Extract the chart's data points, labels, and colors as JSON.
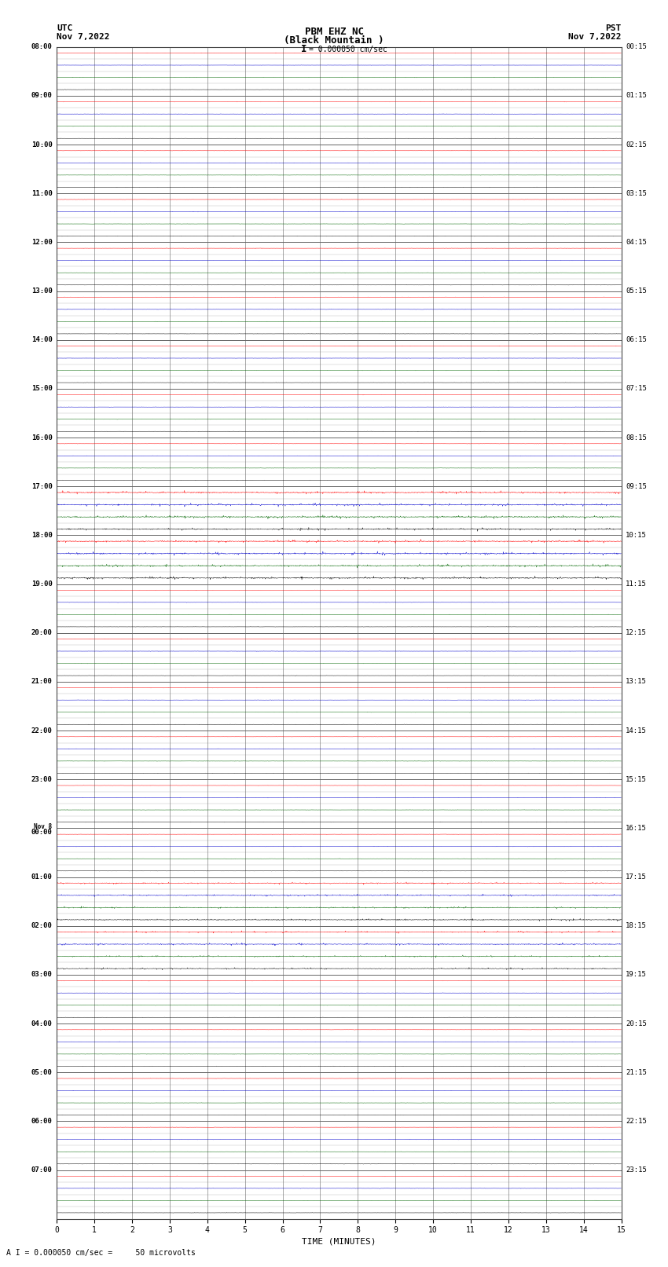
{
  "title_line1": "PBM EHZ NC",
  "title_line2": "(Black Mountain )",
  "scale_bar_text": "I = 0.000050 cm/sec",
  "left_header_line1": "UTC",
  "left_header_line2": "Nov 7,2022",
  "right_header_line1": "PST",
  "right_header_line2": "Nov 7,2022",
  "xlabel": "TIME (MINUTES)",
  "footer": "A I = 0.000050 cm/sec =     50 microvolts",
  "left_times": [
    "08:00",
    "",
    "",
    "",
    "09:00",
    "",
    "",
    "",
    "10:00",
    "",
    "",
    "",
    "11:00",
    "",
    "",
    "",
    "12:00",
    "",
    "",
    "",
    "13:00",
    "",
    "",
    "",
    "14:00",
    "",
    "",
    "",
    "15:00",
    "",
    "",
    "",
    "16:00",
    "",
    "",
    "",
    "17:00",
    "",
    "",
    "",
    "18:00",
    "",
    "",
    "",
    "19:00",
    "",
    "",
    "",
    "20:00",
    "",
    "",
    "",
    "21:00",
    "",
    "",
    "",
    "22:00",
    "",
    "",
    "",
    "23:00",
    "",
    "",
    "",
    "Nov 8\n00:00",
    "",
    "",
    "",
    "01:00",
    "",
    "",
    "",
    "02:00",
    "",
    "",
    "",
    "03:00",
    "",
    "",
    "",
    "04:00",
    "",
    "",
    "",
    "05:00",
    "",
    "",
    "",
    "06:00",
    "",
    "",
    "",
    "07:00",
    "",
    "",
    ""
  ],
  "right_times": [
    "00:15",
    "",
    "",
    "",
    "01:15",
    "",
    "",
    "",
    "02:15",
    "",
    "",
    "",
    "03:15",
    "",
    "",
    "",
    "04:15",
    "",
    "",
    "",
    "05:15",
    "",
    "",
    "",
    "06:15",
    "",
    "",
    "",
    "07:15",
    "",
    "",
    "",
    "08:15",
    "",
    "",
    "",
    "09:15",
    "",
    "",
    "",
    "10:15",
    "",
    "",
    "",
    "11:15",
    "",
    "",
    "",
    "12:15",
    "",
    "",
    "",
    "13:15",
    "",
    "",
    "",
    "14:15",
    "",
    "",
    "",
    "15:15",
    "",
    "",
    "",
    "16:15",
    "",
    "",
    "",
    "17:15",
    "",
    "",
    "",
    "18:15",
    "",
    "",
    "",
    "19:15",
    "",
    "",
    "",
    "20:15",
    "",
    "",
    "",
    "21:15",
    "",
    "",
    "",
    "22:15",
    "",
    "",
    "",
    "23:15",
    "",
    "",
    ""
  ],
  "n_rows": 96,
  "n_cols": 15,
  "background_color": "#ffffff",
  "row_colors": [
    "#ff0000",
    "#0000cc",
    "#006600",
    "#000000"
  ],
  "grid_color_major": "#666666",
  "grid_color_minor": "#bbbbbb",
  "xmin": 0,
  "xmax": 15,
  "xticks": [
    0,
    1,
    2,
    3,
    4,
    5,
    6,
    7,
    8,
    9,
    10,
    11,
    12,
    13,
    14,
    15
  ],
  "n_points": 1800,
  "base_amplitude": 0.018,
  "spike_amplitude": 0.06,
  "spike_prob": 0.04,
  "active_rows_high": [
    36,
    37,
    38,
    39,
    40,
    41,
    42,
    43
  ],
  "active_rows_med": [
    68,
    69,
    70,
    71,
    72,
    73,
    74,
    75
  ],
  "active_amplitude_high": 0.12,
  "active_amplitude_med": 0.08
}
